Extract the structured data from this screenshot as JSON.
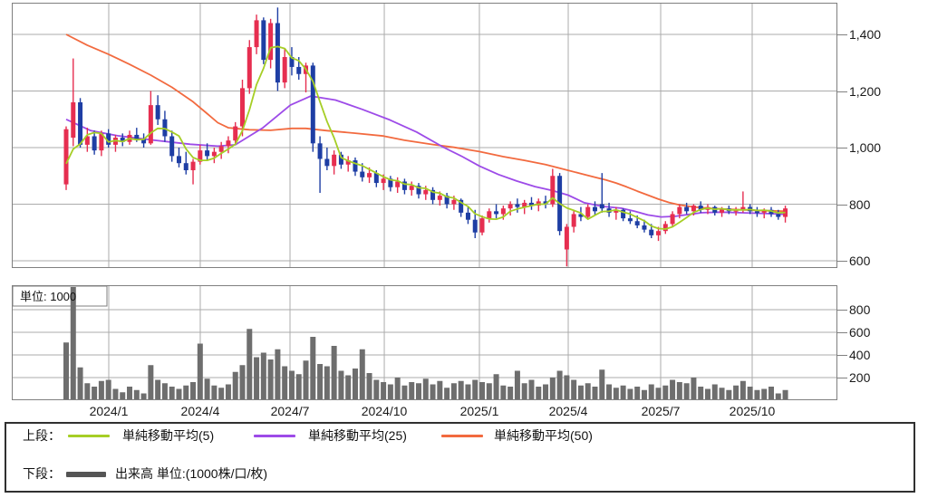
{
  "chart": {
    "unit_label": "単位: 1000",
    "price_axis_ticks": [
      {
        "label": "1,400",
        "value": 1400
      },
      {
        "label": "1,200",
        "value": 1200
      },
      {
        "label": "1,000",
        "value": 1000
      },
      {
        "label": "800",
        "value": 800
      },
      {
        "label": "600",
        "value": 600
      }
    ],
    "volume_axis_ticks": [
      {
        "label": "800",
        "value": 800
      },
      {
        "label": "600",
        "value": 600
      },
      {
        "label": "400",
        "value": 400
      },
      {
        "label": "200",
        "value": 200
      }
    ],
    "x_ticks": [
      {
        "label": "2024/1",
        "week": 6.04
      },
      {
        "label": "2024/4",
        "week": 19.02
      },
      {
        "label": "2024/7",
        "week": 31.75
      },
      {
        "label": "2024/10",
        "week": 45.12
      },
      {
        "label": "2025/1",
        "week": 58.61
      },
      {
        "label": "2025/4",
        "week": 71.21
      },
      {
        "label": "2025/7",
        "week": 84.32
      },
      {
        "label": "2025/10",
        "week": 97.3
      }
    ]
  },
  "legend": {
    "row1_label": "上段：",
    "ma5_label": "単純移動平均(5)",
    "ma25_label": "単純移動平均(25)",
    "ma50_label": "単純移動平均(50)",
    "row2_label": "下段：",
    "volume_label": "出来高 単位:(1000株/口/枚)"
  },
  "colors": {
    "up_candle": "#e62e50",
    "down_candle": "#1e3ea4",
    "ma5": "#a6ce26",
    "ma25": "#9d4be8",
    "ma50": "#f26a3f",
    "volume_bar": "#6e6e6e",
    "volume_swatch": "#555555",
    "grid": "#ababab",
    "panel_border": "#7f7f7f",
    "text": "#1a1a1a"
  },
  "chart_data": [
    {
      "type": "candlestick",
      "panel": "upper",
      "title": "",
      "x_unit": "week",
      "start_period": "2023/11",
      "end_period": "2025/11",
      "ylim": [
        578,
        1512
      ],
      "yticks": [
        600,
        800,
        1000,
        1200,
        1400
      ],
      "grid": true,
      "note": "candles_ohlcv = [open, high, low, close, volume(x1000)] per week",
      "candles_ohlcv": [
        [
          870,
          1075,
          850,
          1065,
          510
        ],
        [
          1035,
          1315,
          1005,
          1160,
          1000
        ],
        [
          1160,
          1175,
          1000,
          1010,
          290
        ],
        [
          1010,
          1070,
          985,
          1040,
          150
        ],
        [
          1040,
          1060,
          975,
          990,
          120
        ],
        [
          990,
          1060,
          970,
          1050,
          170
        ],
        [
          1050,
          1065,
          1000,
          1010,
          180
        ],
        [
          1010,
          1045,
          985,
          1035,
          100
        ],
        [
          1035,
          1050,
          1005,
          1020,
          70
        ],
        [
          1020,
          1060,
          1010,
          1045,
          120
        ],
        [
          1045,
          1070,
          1020,
          1030,
          90
        ],
        [
          1030,
          1050,
          1000,
          1015,
          60
        ],
        [
          1015,
          1200,
          1010,
          1150,
          310
        ],
        [
          1150,
          1185,
          1080,
          1100,
          180
        ],
        [
          1100,
          1130,
          1020,
          1040,
          150
        ],
        [
          1040,
          1060,
          950,
          970,
          120
        ],
        [
          970,
          1000,
          930,
          945,
          100
        ],
        [
          945,
          985,
          905,
          920,
          130
        ],
        [
          920,
          960,
          870,
          950,
          160
        ],
        [
          950,
          1010,
          940,
          990,
          500
        ],
        [
          990,
          1015,
          955,
          970,
          190
        ],
        [
          970,
          1000,
          945,
          985,
          130
        ],
        [
          985,
          1020,
          960,
          1005,
          110
        ],
        [
          1005,
          1040,
          980,
          1025,
          140
        ],
        [
          1025,
          1090,
          1010,
          1075,
          250
        ],
        [
          1075,
          1240,
          1040,
          1210,
          310
        ],
        [
          1210,
          1380,
          1190,
          1355,
          630
        ],
        [
          1355,
          1470,
          1330,
          1450,
          380
        ],
        [
          1450,
          1460,
          1295,
          1310,
          420
        ],
        [
          1310,
          1455,
          1280,
          1440,
          360
        ],
        [
          1440,
          1495,
          1200,
          1230,
          450
        ],
        [
          1230,
          1350,
          1210,
          1320,
          300
        ],
        [
          1320,
          1355,
          1255,
          1285,
          260
        ],
        [
          1285,
          1320,
          1240,
          1260,
          230
        ],
        [
          1260,
          1300,
          1195,
          1290,
          350
        ],
        [
          1290,
          1300,
          985,
          1015,
          560
        ],
        [
          1015,
          1040,
          840,
          960,
          320
        ],
        [
          960,
          1000,
          920,
          935,
          300
        ],
        [
          935,
          990,
          905,
          975,
          480
        ],
        [
          975,
          985,
          925,
          940,
          260
        ],
        [
          940,
          970,
          915,
          955,
          220
        ],
        [
          955,
          965,
          900,
          915,
          280
        ],
        [
          915,
          945,
          880,
          895,
          450
        ],
        [
          895,
          930,
          875,
          910,
          240
        ],
        [
          910,
          920,
          860,
          875,
          180
        ],
        [
          875,
          905,
          850,
          890,
          160
        ],
        [
          890,
          900,
          845,
          860,
          140
        ],
        [
          860,
          895,
          840,
          880,
          200
        ],
        [
          880,
          890,
          835,
          850,
          130
        ],
        [
          850,
          880,
          830,
          865,
          160
        ],
        [
          865,
          875,
          820,
          835,
          150
        ],
        [
          835,
          865,
          815,
          850,
          190
        ],
        [
          850,
          860,
          800,
          815,
          140
        ],
        [
          815,
          845,
          795,
          830,
          170
        ],
        [
          830,
          840,
          785,
          800,
          110
        ],
        [
          800,
          830,
          780,
          815,
          150
        ],
        [
          815,
          820,
          755,
          770,
          170
        ],
        [
          770,
          790,
          730,
          745,
          140
        ],
        [
          745,
          780,
          680,
          700,
          180
        ],
        [
          700,
          760,
          690,
          750,
          160
        ],
        [
          750,
          785,
          735,
          775,
          150
        ],
        [
          775,
          800,
          750,
          765,
          230
        ],
        [
          765,
          795,
          745,
          785,
          130
        ],
        [
          785,
          810,
          760,
          800,
          120
        ],
        [
          800,
          820,
          770,
          790,
          260
        ],
        [
          790,
          815,
          765,
          805,
          150
        ],
        [
          805,
          825,
          780,
          795,
          180
        ],
        [
          795,
          820,
          775,
          810,
          120
        ],
        [
          810,
          830,
          785,
          800,
          140
        ],
        [
          800,
          925,
          790,
          900,
          200
        ],
        [
          900,
          910,
          690,
          705,
          260
        ],
        [
          640,
          730,
          580,
          720,
          220
        ],
        [
          720,
          780,
          700,
          765,
          180
        ],
        [
          765,
          790,
          740,
          755,
          130
        ],
        [
          755,
          800,
          745,
          790,
          150
        ],
        [
          790,
          810,
          760,
          775,
          120
        ],
        [
          800,
          910,
          770,
          785,
          270
        ],
        [
          785,
          805,
          755,
          770,
          140
        ],
        [
          770,
          790,
          745,
          780,
          110
        ],
        [
          780,
          785,
          740,
          750,
          130
        ],
        [
          750,
          775,
          730,
          740,
          100
        ],
        [
          740,
          760,
          715,
          725,
          120
        ],
        [
          725,
          745,
          700,
          710,
          90
        ],
        [
          710,
          730,
          680,
          690,
          140
        ],
        [
          690,
          720,
          670,
          705,
          110
        ],
        [
          705,
          740,
          695,
          730,
          130
        ],
        [
          730,
          775,
          720,
          765,
          180
        ],
        [
          765,
          800,
          750,
          790,
          160
        ],
        [
          790,
          805,
          765,
          775,
          150
        ],
        [
          775,
          800,
          760,
          795,
          200
        ],
        [
          795,
          810,
          770,
          780,
          120
        ],
        [
          780,
          800,
          765,
          790,
          100
        ],
        [
          790,
          795,
          760,
          770,
          140
        ],
        [
          770,
          790,
          755,
          785,
          110
        ],
        [
          785,
          795,
          765,
          775,
          90
        ],
        [
          775,
          790,
          760,
          780,
          130
        ],
        [
          780,
          845,
          770,
          790,
          170
        ],
        [
          790,
          800,
          765,
          775,
          120
        ],
        [
          775,
          790,
          755,
          770,
          90
        ],
        [
          770,
          785,
          750,
          780,
          100
        ],
        [
          780,
          790,
          755,
          765,
          120
        ],
        [
          765,
          780,
          745,
          755,
          60
        ],
        [
          755,
          795,
          735,
          785,
          90
        ]
      ],
      "series": [
        {
          "name": "単純移動平均(5)",
          "computed_from": "close",
          "window": 5,
          "seed_pre_closes": [
            900,
            920,
            880,
            950
          ]
        },
        {
          "name": "単純移動平均(25)",
          "points_week_price": [
            [
              0,
              1100
            ],
            [
              3.5,
              1060
            ],
            [
              7.3,
              1042
            ],
            [
              12.5,
              1026
            ],
            [
              17.6,
              1012
            ],
            [
              21.5,
              1005
            ],
            [
              24,
              1010
            ],
            [
              27.9,
              1070
            ],
            [
              31.8,
              1150
            ],
            [
              34.7,
              1182
            ],
            [
              38.2,
              1168
            ],
            [
              42,
              1135
            ],
            [
              45.9,
              1098
            ],
            [
              49.7,
              1055
            ],
            [
              53.6,
              1000
            ],
            [
              56.2,
              968
            ],
            [
              58.6,
              935
            ],
            [
              61.3,
              905
            ],
            [
              63.9,
              882
            ],
            [
              66.5,
              862
            ],
            [
              69,
              848
            ],
            [
              71.2,
              832
            ],
            [
              73.5,
              805
            ],
            [
              76.1,
              792
            ],
            [
              78.7,
              786
            ],
            [
              80.6,
              775
            ],
            [
              82.5,
              762
            ],
            [
              84.4,
              755
            ],
            [
              86.4,
              757
            ],
            [
              88.3,
              764
            ],
            [
              90.2,
              770
            ],
            [
              92.8,
              772
            ],
            [
              95.4,
              770
            ],
            [
              98,
              768
            ],
            [
              100.5,
              766
            ],
            [
              102,
              764
            ]
          ]
        },
        {
          "name": "単純移動平均(50)",
          "points_week_price": [
            [
              0,
              1400
            ],
            [
              3,
              1362
            ],
            [
              6,
              1330
            ],
            [
              9,
              1294
            ],
            [
              12,
              1256
            ],
            [
              15,
              1213
            ],
            [
              18,
              1162
            ],
            [
              20,
              1120
            ],
            [
              21.5,
              1088
            ],
            [
              23,
              1070
            ],
            [
              26,
              1063
            ],
            [
              29,
              1061
            ],
            [
              32,
              1068
            ],
            [
              34,
              1068
            ],
            [
              37,
              1060
            ],
            [
              41,
              1051
            ],
            [
              45,
              1041
            ],
            [
              48,
              1026
            ],
            [
              52,
              1011
            ],
            [
              55,
              1001
            ],
            [
              58.6,
              986
            ],
            [
              62,
              968
            ],
            [
              65,
              955
            ],
            [
              68,
              940
            ],
            [
              71,
              921
            ],
            [
              73,
              908
            ],
            [
              75,
              895
            ],
            [
              76.5,
              886
            ],
            [
              78,
              875
            ],
            [
              79.5,
              861
            ],
            [
              81,
              846
            ],
            [
              82.5,
              832
            ],
            [
              84,
              818
            ],
            [
              85.5,
              806
            ],
            [
              87,
              797
            ],
            [
              89,
              790
            ],
            [
              91,
              786
            ],
            [
              93,
              783
            ],
            [
              95,
              781
            ],
            [
              97,
              779
            ],
            [
              99,
              777
            ],
            [
              101,
              776
            ],
            [
              102,
              775
            ]
          ]
        }
      ]
    },
    {
      "type": "bar",
      "panel": "lower",
      "name": "出来高",
      "unit": "1000株/口/枚",
      "yticks": [
        200,
        400,
        600,
        800
      ],
      "ylim": [
        0,
        1016
      ],
      "grid": true,
      "values_note": "weekly volume values are the 5th element of candles_ohlcv above"
    }
  ]
}
